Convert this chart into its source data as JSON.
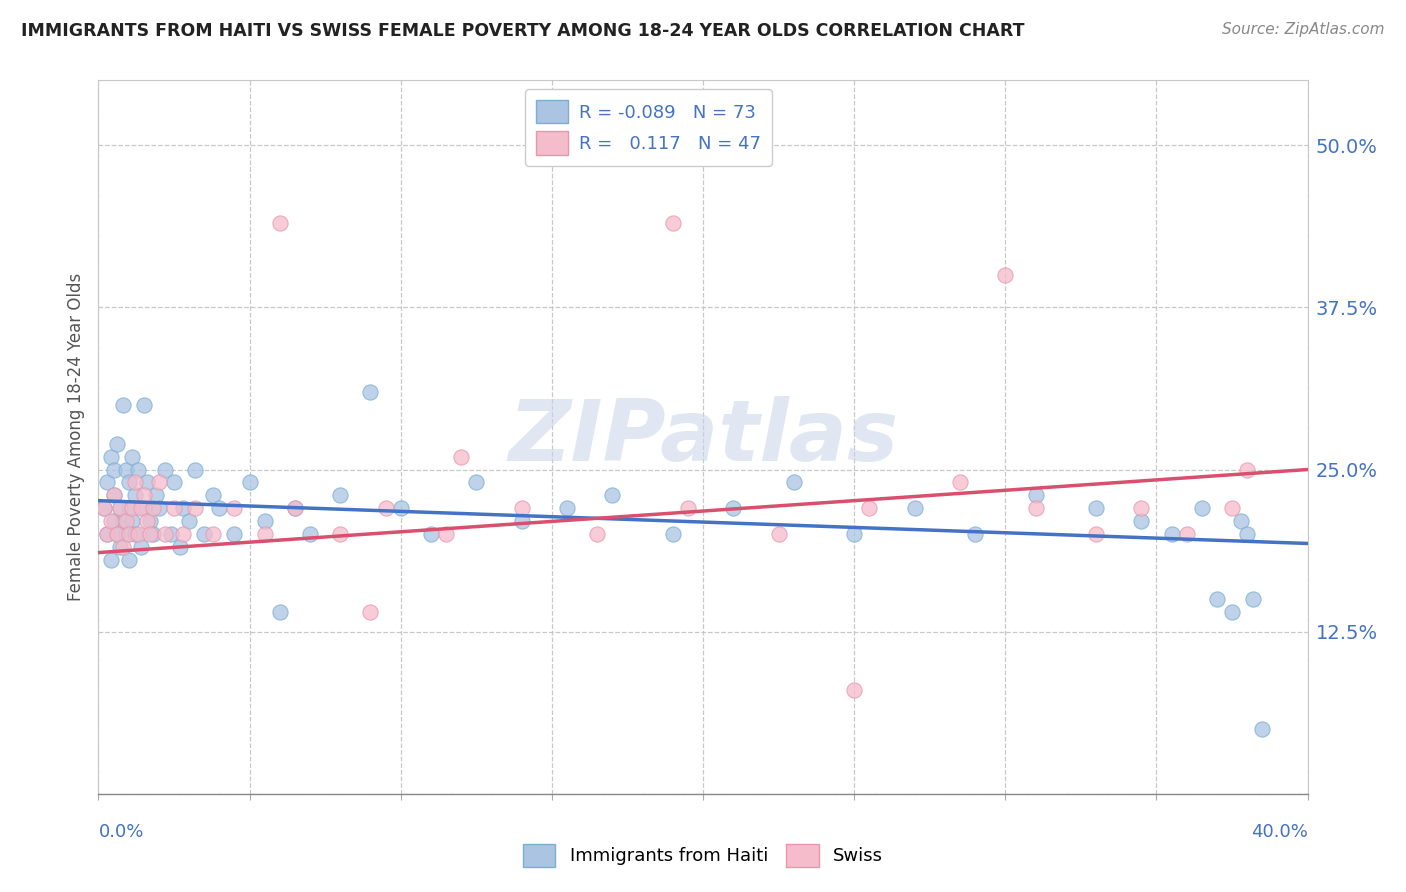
{
  "title": "IMMIGRANTS FROM HAITI VS SWISS FEMALE POVERTY AMONG 18-24 YEAR OLDS CORRELATION CHART",
  "source": "Source: ZipAtlas.com",
  "ylabel": "Female Poverty Among 18-24 Year Olds",
  "right_yticklabels": [
    "",
    "12.5%",
    "25.0%",
    "37.5%",
    "50.0%"
  ],
  "right_yticks": [
    0.0,
    0.125,
    0.25,
    0.375,
    0.5
  ],
  "xmin": 0.0,
  "xmax": 0.4,
  "ymin": 0.0,
  "ymax": 0.55,
  "series1_color": "#aac4e2",
  "series1_edgecolor": "#7aafd4",
  "series2_color": "#f5bccb",
  "series2_edgecolor": "#e896ae",
  "trendline1_color": "#4472c4",
  "trendline2_color": "#d94f6e",
  "series1_label": "Immigrants from Haiti",
  "series2_label": "Swiss",
  "background_color": "#ffffff",
  "watermark_text": "ZIPatlas",
  "haiti_x": [
    0.002,
    0.003,
    0.003,
    0.004,
    0.004,
    0.005,
    0.005,
    0.005,
    0.006,
    0.006,
    0.007,
    0.007,
    0.008,
    0.008,
    0.009,
    0.009,
    0.01,
    0.01,
    0.01,
    0.011,
    0.011,
    0.012,
    0.012,
    0.013,
    0.014,
    0.015,
    0.015,
    0.016,
    0.017,
    0.018,
    0.019,
    0.02,
    0.022,
    0.024,
    0.025,
    0.027,
    0.028,
    0.03,
    0.032,
    0.035,
    0.038,
    0.04,
    0.045,
    0.05,
    0.055,
    0.06,
    0.065,
    0.07,
    0.08,
    0.09,
    0.1,
    0.11,
    0.125,
    0.14,
    0.155,
    0.17,
    0.19,
    0.21,
    0.23,
    0.25,
    0.27,
    0.29,
    0.31,
    0.33,
    0.345,
    0.355,
    0.365,
    0.37,
    0.375,
    0.378,
    0.38,
    0.382,
    0.385
  ],
  "haiti_y": [
    0.22,
    0.2,
    0.24,
    0.18,
    0.26,
    0.21,
    0.25,
    0.23,
    0.2,
    0.27,
    0.19,
    0.22,
    0.3,
    0.21,
    0.25,
    0.2,
    0.22,
    0.24,
    0.18,
    0.26,
    0.21,
    0.2,
    0.23,
    0.25,
    0.19,
    0.22,
    0.3,
    0.24,
    0.21,
    0.2,
    0.23,
    0.22,
    0.25,
    0.2,
    0.24,
    0.19,
    0.22,
    0.21,
    0.25,
    0.2,
    0.23,
    0.22,
    0.2,
    0.24,
    0.21,
    0.14,
    0.22,
    0.2,
    0.23,
    0.31,
    0.22,
    0.2,
    0.24,
    0.21,
    0.22,
    0.23,
    0.2,
    0.22,
    0.24,
    0.2,
    0.22,
    0.2,
    0.23,
    0.22,
    0.21,
    0.2,
    0.22,
    0.15,
    0.14,
    0.21,
    0.2,
    0.15,
    0.05
  ],
  "swiss_x": [
    0.002,
    0.003,
    0.004,
    0.005,
    0.006,
    0.007,
    0.008,
    0.009,
    0.01,
    0.011,
    0.012,
    0.013,
    0.014,
    0.015,
    0.016,
    0.017,
    0.018,
    0.02,
    0.022,
    0.025,
    0.028,
    0.032,
    0.038,
    0.045,
    0.055,
    0.065,
    0.08,
    0.095,
    0.115,
    0.14,
    0.165,
    0.195,
    0.225,
    0.255,
    0.285,
    0.31,
    0.33,
    0.345,
    0.36,
    0.375,
    0.38,
    0.06,
    0.19,
    0.3,
    0.09,
    0.12,
    0.25
  ],
  "swiss_y": [
    0.22,
    0.2,
    0.21,
    0.23,
    0.2,
    0.22,
    0.19,
    0.21,
    0.2,
    0.22,
    0.24,
    0.2,
    0.22,
    0.23,
    0.21,
    0.2,
    0.22,
    0.24,
    0.2,
    0.22,
    0.2,
    0.22,
    0.2,
    0.22,
    0.2,
    0.22,
    0.2,
    0.22,
    0.2,
    0.22,
    0.2,
    0.22,
    0.2,
    0.22,
    0.24,
    0.22,
    0.2,
    0.22,
    0.2,
    0.22,
    0.25,
    0.44,
    0.44,
    0.4,
    0.14,
    0.26,
    0.08
  ],
  "haiti_trendline": [
    0.226,
    0.193
  ],
  "swiss_trendline": [
    0.186,
    0.25
  ]
}
